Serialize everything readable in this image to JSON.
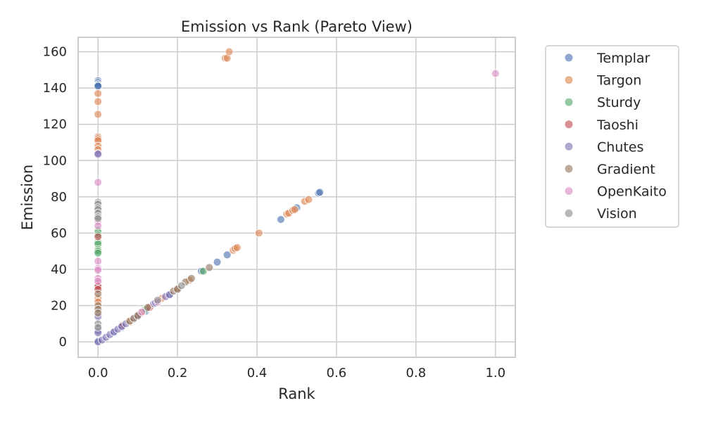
{
  "chart_data": {
    "type": "scatter",
    "title": "Emission vs Rank (Pareto View)",
    "xlabel": "Rank",
    "ylabel": "Emission",
    "xlim": [
      -0.05,
      1.05
    ],
    "ylim": [
      -8.5,
      168
    ],
    "xticks": [
      0.0,
      0.2,
      0.4,
      0.6,
      0.8,
      1.0
    ],
    "xtick_labels": [
      "0.0",
      "0.2",
      "0.4",
      "0.6",
      "0.8",
      "1.0"
    ],
    "yticks": [
      0,
      20,
      40,
      60,
      80,
      100,
      120,
      140,
      160
    ],
    "ytick_labels": [
      "0",
      "20",
      "40",
      "60",
      "80",
      "100",
      "120",
      "140",
      "160"
    ],
    "grid": true,
    "legend_position": "outside-right",
    "series": [
      {
        "name": "Templar",
        "color": "#4c72b0",
        "points": [
          [
            0,
            144
          ],
          [
            0,
            143
          ],
          [
            0,
            142
          ],
          [
            0,
            141.5
          ],
          [
            0,
            141
          ],
          [
            0,
            0.5
          ],
          [
            0.04,
            5
          ],
          [
            0.06,
            8
          ],
          [
            0.12,
            17
          ],
          [
            0.18,
            26
          ],
          [
            0.2,
            29
          ],
          [
            0.26,
            39
          ],
          [
            0.3,
            44
          ],
          [
            0.325,
            48
          ],
          [
            0.46,
            67.5
          ],
          [
            0.5,
            74
          ],
          [
            0.555,
            82
          ],
          [
            0.558,
            82.5
          ]
        ]
      },
      {
        "name": "Targon",
        "color": "#dd8452",
        "points": [
          [
            0,
            137
          ],
          [
            0,
            132.5
          ],
          [
            0,
            125.5
          ],
          [
            0,
            113
          ],
          [
            0,
            112
          ],
          [
            0,
            111
          ],
          [
            0,
            108
          ],
          [
            0,
            106
          ],
          [
            0,
            24
          ],
          [
            0,
            22
          ],
          [
            0.32,
            156.5
          ],
          [
            0.325,
            156.5
          ],
          [
            0.33,
            160
          ],
          [
            0.08,
            11
          ],
          [
            0.11,
            16
          ],
          [
            0.16,
            24
          ],
          [
            0.2,
            29.5
          ],
          [
            0.23,
            34
          ],
          [
            0.34,
            50.5
          ],
          [
            0.345,
            51.5
          ],
          [
            0.35,
            52
          ],
          [
            0.405,
            60
          ],
          [
            0.475,
            70.5
          ],
          [
            0.48,
            71
          ],
          [
            0.49,
            72.5
          ],
          [
            0.495,
            73
          ],
          [
            0.52,
            77.5
          ],
          [
            0.53,
            78.5
          ]
        ]
      },
      {
        "name": "Sturdy",
        "color": "#55a868",
        "points": [
          [
            0,
            61.5
          ],
          [
            0,
            60.5
          ],
          [
            0,
            59
          ],
          [
            0,
            55
          ],
          [
            0,
            54
          ],
          [
            0,
            51
          ],
          [
            0,
            50
          ],
          [
            0,
            49
          ],
          [
            0.12,
            18
          ],
          [
            0.265,
            39
          ]
        ]
      },
      {
        "name": "Taoshi",
        "color": "#c44e52",
        "points": [
          [
            0,
            32
          ],
          [
            0,
            31
          ],
          [
            0,
            30.5
          ],
          [
            0,
            29
          ],
          [
            0,
            58
          ],
          [
            0.1,
            15
          ],
          [
            0.06,
            9
          ],
          [
            0.13,
            19
          ]
        ]
      },
      {
        "name": "Chutes",
        "color": "#8172b3",
        "points": [
          [
            0,
            104
          ],
          [
            0,
            103.5
          ],
          [
            0,
            14
          ],
          [
            0,
            7
          ],
          [
            0,
            6
          ],
          [
            0,
            5
          ],
          [
            0,
            0
          ],
          [
            0.01,
            1
          ],
          [
            0.02,
            2.5
          ],
          [
            0.03,
            4
          ],
          [
            0.04,
            5.5
          ],
          [
            0.05,
            7
          ],
          [
            0.06,
            8.5
          ],
          [
            0.07,
            10
          ],
          [
            0.09,
            12.5
          ],
          [
            0.1,
            14
          ],
          [
            0.14,
            21
          ],
          [
            0.145,
            21.5
          ],
          [
            0.17,
            25
          ],
          [
            0.18,
            26
          ]
        ]
      },
      {
        "name": "Gradient",
        "color": "#937860",
        "points": [
          [
            0,
            26.5
          ],
          [
            0,
            20
          ],
          [
            0,
            18
          ],
          [
            0,
            16
          ],
          [
            0.08,
            11.5
          ],
          [
            0.09,
            13
          ],
          [
            0.1,
            14.5
          ],
          [
            0.125,
            19
          ],
          [
            0.19,
            28
          ],
          [
            0.2,
            29
          ],
          [
            0.22,
            33
          ],
          [
            0.235,
            35
          ],
          [
            0.28,
            41
          ]
        ]
      },
      {
        "name": "OpenKaito",
        "color": "#da8bc3",
        "points": [
          [
            0,
            88
          ],
          [
            0,
            66.5
          ],
          [
            0,
            64
          ],
          [
            0,
            44.5
          ],
          [
            0,
            40.5
          ],
          [
            0,
            39.5
          ],
          [
            0,
            35
          ],
          [
            0,
            33.5
          ],
          [
            1.0,
            148
          ],
          [
            0.11,
            16.5
          ],
          [
            0.15,
            22
          ]
        ]
      },
      {
        "name": "Vision",
        "color": "#8c8c8c",
        "points": [
          [
            0,
            77
          ],
          [
            0,
            76
          ],
          [
            0,
            74
          ],
          [
            0,
            73
          ],
          [
            0,
            71
          ],
          [
            0,
            69
          ],
          [
            0,
            68
          ],
          [
            0,
            10
          ],
          [
            0,
            8
          ],
          [
            0.15,
            23
          ],
          [
            0.21,
            31
          ]
        ]
      }
    ]
  }
}
